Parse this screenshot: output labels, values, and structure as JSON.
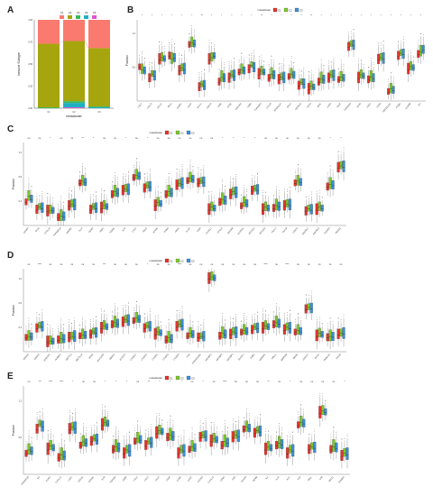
{
  "colors": {
    "C1": "#e8322d",
    "C2": "#7dc62c",
    "C3": "#3a8fd6"
  },
  "panelA": {
    "letter": "A",
    "ylabel": "Immune Subtype",
    "xlabel": "metacluster",
    "xticks": [
      "C1",
      "C2",
      "C3"
    ],
    "yticks": [
      "0.00",
      "0.25",
      "0.50",
      "0.75",
      "1.00"
    ],
    "legend": [
      {
        "label": "C1",
        "color": "#fa7a6f"
      },
      {
        "label": "C2",
        "color": "#a6a50d"
      },
      {
        "label": "C3",
        "color": "#3bb85c"
      },
      {
        "label": "C4",
        "color": "#20b0c4"
      },
      {
        "label": "C6",
        "color": "#d958cf"
      }
    ]
  },
  "chart_data": [
    {
      "panel": "A",
      "type": "bar",
      "xlabel": "metacluster",
      "ylabel": "Immune Subtype",
      "categories": [
        "C1",
        "C2",
        "C3"
      ],
      "ylim": [
        0,
        1
      ],
      "series": [
        {
          "name": "C6",
          "values": [
            0.0,
            0.01,
            0.0
          ]
        },
        {
          "name": "C4",
          "values": [
            0.0,
            0.05,
            0.01
          ]
        },
        {
          "name": "C3",
          "values": [
            0.01,
            0.02,
            0.01
          ]
        },
        {
          "name": "C2",
          "values": [
            0.72,
            0.68,
            0.66
          ]
        },
        {
          "name": "C1",
          "values": [
            0.27,
            0.24,
            0.32
          ]
        }
      ]
    },
    {
      "panel": "B",
      "type": "box",
      "legend_title": "metacluster",
      "ylabel": "Fraction",
      "yticks": [
        "0.8",
        "1.2"
      ],
      "series_names": [
        "C1",
        "C2",
        "C3"
      ],
      "categories": [
        "CCL7",
        "CCL13",
        "CCL11",
        "MICA",
        "ULBP1",
        "CD47",
        "HLA-C",
        "CD274",
        "VSIR",
        "NT5E",
        "HAVCR2",
        "CD86",
        "TNFRSF4",
        "CTLA4",
        "ADORA2A",
        "BTLA",
        "CD40LG",
        "CD70",
        "IDO1",
        "LAG3",
        "TIGIT",
        "TNFRSF9",
        "ICOS",
        "CD27",
        "CD28",
        "PDCD1LG2",
        "ITGB2",
        "IL10RB",
        "IL6"
      ],
      "significance": [
        "*",
        "*",
        "*",
        "*",
        "*",
        "*",
        "**",
        "*",
        "*",
        "*",
        "*",
        "*",
        "**",
        "*",
        "*",
        "*",
        "*",
        "**",
        "*",
        "*",
        "*",
        "*",
        "*",
        "*",
        "*",
        "*",
        "*",
        "*",
        "*"
      ],
      "medians": [
        [
          0.45,
          0.3,
          0.55,
          0.6,
          0.4,
          0.75,
          0.18,
          0.55,
          0.25,
          0.3,
          0.38,
          0.42,
          0.35,
          0.3,
          0.28,
          0.32,
          0.2,
          0.15,
          0.25,
          0.3,
          0.28,
          0.72,
          0.3,
          0.28,
          0.55,
          0.12,
          0.6,
          0.42,
          0.62
        ],
        [
          0.42,
          0.36,
          0.58,
          0.56,
          0.44,
          0.78,
          0.22,
          0.58,
          0.32,
          0.35,
          0.42,
          0.48,
          0.4,
          0.36,
          0.32,
          0.36,
          0.25,
          0.2,
          0.3,
          0.35,
          0.32,
          0.76,
          0.35,
          0.32,
          0.58,
          0.16,
          0.64,
          0.46,
          0.66
        ],
        [
          0.4,
          0.33,
          0.56,
          0.57,
          0.42,
          0.76,
          0.2,
          0.6,
          0.3,
          0.33,
          0.4,
          0.44,
          0.38,
          0.34,
          0.3,
          0.34,
          0.22,
          0.18,
          0.28,
          0.33,
          0.3,
          0.74,
          0.33,
          0.3,
          0.56,
          0.14,
          0.62,
          0.44,
          0.68
        ]
      ]
    },
    {
      "panel": "C",
      "type": "box",
      "legend_title": "metacluster",
      "ylabel": "Fraction",
      "yticks": [
        "0.4",
        "0.8",
        "1.2"
      ],
      "series_names": [
        "C1",
        "C2",
        "C3"
      ],
      "categories": [
        "VEGFA",
        "IFNG",
        "CXCL10",
        "TNFRSF14",
        "HMGB1",
        "IL1A",
        "GZMA",
        "PRF1",
        "TGFB1",
        "IL10",
        "CCL5",
        "SELP",
        "ICAM1",
        "ITGB2",
        "ARG1",
        "IL12A",
        "TLR4",
        "CX3CL1",
        "CXCL9",
        "EDNRB",
        "ENTPD1",
        "BTN3A1",
        "BTN3A2",
        "HLA-A",
        "HLA-B",
        "CD276",
        "KIR2DL1",
        "KIR2DL3",
        "TNFSF4",
        "PDCD1"
      ],
      "significance": [
        "ns",
        "ns",
        "*",
        "ns",
        "ns",
        "**",
        "*",
        "ns",
        "ns",
        "*",
        "ns",
        "*",
        "ns",
        "ns",
        "ns",
        "ns",
        "ns",
        "ns",
        "*",
        "*",
        "*",
        "*",
        "ns",
        "ns",
        "ns",
        "ns",
        "ns",
        "ns",
        "*",
        "*"
      ],
      "medians": [
        [
          0.3,
          0.2,
          0.18,
          0.1,
          0.25,
          0.55,
          0.2,
          0.22,
          0.4,
          0.45,
          0.62,
          0.48,
          0.25,
          0.4,
          0.52,
          0.58,
          0.55,
          0.2,
          0.3,
          0.4,
          0.25,
          0.45,
          0.2,
          0.22,
          0.25,
          0.55,
          0.18,
          0.2,
          0.5,
          0.75
        ],
        [
          0.38,
          0.24,
          0.2,
          0.12,
          0.28,
          0.58,
          0.24,
          0.26,
          0.44,
          0.48,
          0.66,
          0.52,
          0.3,
          0.44,
          0.55,
          0.62,
          0.58,
          0.24,
          0.34,
          0.44,
          0.3,
          0.48,
          0.24,
          0.26,
          0.28,
          0.58,
          0.22,
          0.24,
          0.54,
          0.78
        ],
        [
          0.34,
          0.22,
          0.19,
          0.11,
          0.26,
          0.56,
          0.22,
          0.24,
          0.42,
          0.46,
          0.64,
          0.5,
          0.28,
          0.42,
          0.54,
          0.6,
          0.56,
          0.22,
          0.32,
          0.42,
          0.28,
          0.46,
          0.22,
          0.24,
          0.26,
          0.56,
          0.2,
          0.22,
          0.52,
          0.76
        ]
      ]
    },
    {
      "panel": "D",
      "type": "box",
      "legend_title": "metacluster",
      "ylabel": "Fraction",
      "yticks": [
        "0.4",
        "0.8",
        "1.2"
      ],
      "series_names": [
        "C1",
        "C2",
        "C3"
      ],
      "categories": [
        "SMAD2",
        "SMAD3",
        "HNRNPC",
        "ALKBH5",
        "METTL3",
        "METTL14",
        "WTAP",
        "KIAA1429",
        "RBM15",
        "ZC3H13",
        "YTHDC1",
        "YTHDC2",
        "YTHDF1",
        "YTHDF2",
        "YTHDF3",
        "FTO",
        "HNRNPA2B1",
        "IGF2BP1",
        "IGF2BP2",
        "IGF2BP3",
        "ELAVL1",
        "FMR1",
        "LRPPRC",
        "CBLL1",
        "RBM15B",
        "VIRMA",
        "ZNF217",
        "EIF3A",
        "PRRC2A",
        "NONO"
      ],
      "significance": [
        "ns",
        "****",
        "ns",
        "ns",
        "ns",
        "ns",
        "ns",
        "***",
        "ns",
        "ns",
        "ns",
        "*",
        "ns",
        "ns",
        "****",
        "ns",
        "ns",
        "ns",
        "ns",
        "ns",
        "ns",
        "ns",
        "****",
        "ns",
        "****",
        "ns",
        "ns",
        "ns",
        "ns",
        "ns"
      ],
      "medians": [
        [
          0.18,
          0.3,
          0.12,
          0.15,
          0.18,
          0.2,
          0.22,
          0.3,
          0.35,
          0.38,
          0.4,
          0.3,
          0.22,
          0.15,
          0.32,
          0.2,
          0.18,
          0.95,
          0.2,
          0.22,
          0.25,
          0.28,
          0.3,
          0.35,
          0.28,
          0.25,
          0.55,
          0.2,
          0.18,
          0.22
        ],
        [
          0.2,
          0.34,
          0.14,
          0.17,
          0.2,
          0.22,
          0.26,
          0.34,
          0.38,
          0.42,
          0.44,
          0.34,
          0.26,
          0.18,
          0.36,
          0.24,
          0.2,
          0.98,
          0.24,
          0.26,
          0.28,
          0.32,
          0.34,
          0.38,
          0.32,
          0.28,
          0.58,
          0.24,
          0.2,
          0.24
        ],
        [
          0.19,
          0.32,
          0.13,
          0.16,
          0.19,
          0.21,
          0.24,
          0.32,
          0.36,
          0.4,
          0.42,
          0.32,
          0.24,
          0.16,
          0.34,
          0.22,
          0.19,
          0.96,
          0.22,
          0.24,
          0.26,
          0.3,
          0.32,
          0.36,
          0.3,
          0.26,
          0.56,
          0.22,
          0.19,
          0.23
        ]
      ]
    },
    {
      "panel": "E",
      "type": "box",
      "legend_title": "metacluster",
      "ylabel": "Fraction",
      "yticks": [
        "0.8",
        "1.2"
      ],
      "series_names": [
        "C1",
        "C2",
        "C3"
      ],
      "categories": [
        "TNFRSF18",
        "IL4",
        "IL2RA",
        "CXCL12",
        "CSF1",
        "CSF1R",
        "PTPRC",
        "IL1B",
        "TNFSF9",
        "CD80",
        "CCL2",
        "CCL3",
        "CCL4",
        "CCL8",
        "CCR5",
        "CCR7",
        "CXCR3",
        "CXCL13",
        "CD8A",
        "CD4",
        "FOXP3",
        "GZMB",
        "IL2",
        "IL15",
        "IL21",
        "TNF",
        "SELL",
        "LTB",
        "TBX21",
        "EOMES"
      ],
      "significance": [
        "ns",
        "***",
        "****",
        "****",
        "*",
        "ns",
        "ns",
        "*",
        "*",
        "*",
        "ns",
        "**",
        "*",
        "*",
        "*",
        "ns",
        "*",
        "ns",
        "****",
        "ns",
        "ns",
        "ns",
        "**",
        "ns",
        "*",
        "ns",
        "ns",
        "ns",
        "ns",
        "*"
      ],
      "medians": [
        [
          0.25,
          0.55,
          0.3,
          0.2,
          0.55,
          0.35,
          0.4,
          0.6,
          0.3,
          0.25,
          0.4,
          0.35,
          0.5,
          0.45,
          0.25,
          0.3,
          0.45,
          0.4,
          0.35,
          0.45,
          0.55,
          0.5,
          0.3,
          0.35,
          0.25,
          0.6,
          0.3,
          0.75,
          0.3,
          0.22
        ],
        [
          0.3,
          0.62,
          0.35,
          0.24,
          0.58,
          0.4,
          0.44,
          0.64,
          0.34,
          0.3,
          0.44,
          0.4,
          0.54,
          0.48,
          0.3,
          0.34,
          0.48,
          0.44,
          0.4,
          0.48,
          0.58,
          0.54,
          0.34,
          0.38,
          0.3,
          0.64,
          0.34,
          0.78,
          0.34,
          0.26
        ],
        [
          0.28,
          0.58,
          0.32,
          0.22,
          0.56,
          0.38,
          0.42,
          0.62,
          0.32,
          0.28,
          0.42,
          0.38,
          0.52,
          0.46,
          0.28,
          0.32,
          0.46,
          0.42,
          0.38,
          0.46,
          0.56,
          0.52,
          0.32,
          0.36,
          0.28,
          0.62,
          0.32,
          0.76,
          0.32,
          0.24
        ]
      ]
    }
  ]
}
